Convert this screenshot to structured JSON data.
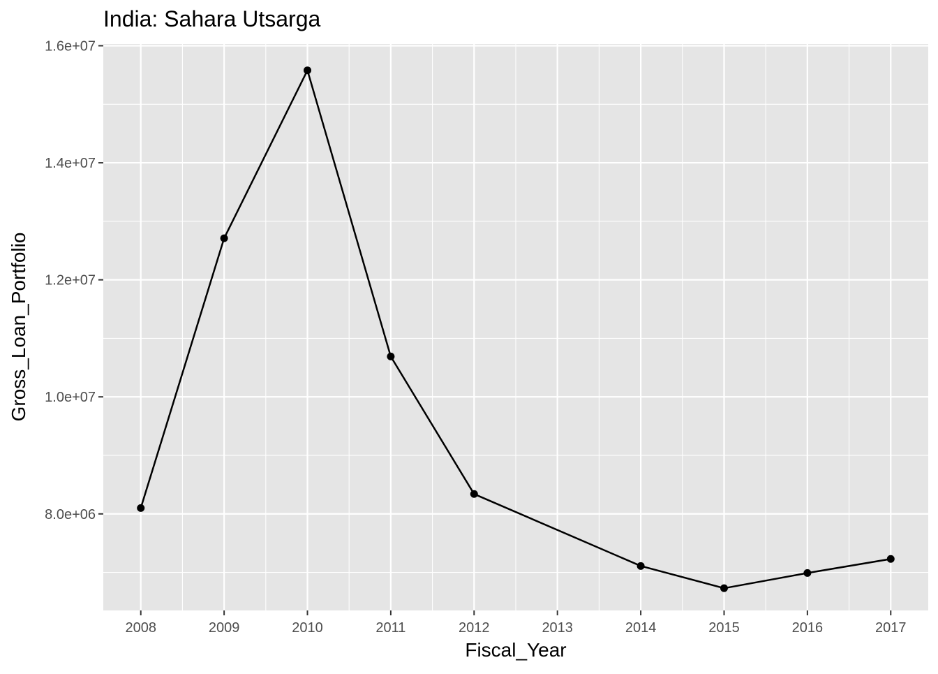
{
  "chart_data": {
    "type": "line",
    "title": "India:  Sahara Utsarga",
    "xlabel": "Fiscal_Year",
    "ylabel": "Gross_Loan_Portfolio",
    "x_ticks": [
      "2008",
      "2009",
      "2010",
      "2011",
      "2012",
      "2013",
      "2014",
      "2015",
      "2016",
      "2017"
    ],
    "xlim": [
      2007.55,
      2017.45
    ],
    "y_ticks": [
      "8.0e+06",
      "1.0e+07",
      "1.2e+07",
      "1.4e+07",
      "1.6e+07"
    ],
    "y_tick_values": [
      8000000,
      10000000,
      12000000,
      14000000,
      16000000
    ],
    "ylim": [
      6350000,
      16030000
    ],
    "grid": true,
    "legend": "none",
    "colors": {
      "panel": "#e5e5e5",
      "grid": "#ffffff",
      "line": "#000000",
      "point": "#000000",
      "tick_text": "#4d4d4d"
    },
    "series": [
      {
        "x": [
          2008,
          2009,
          2010,
          2011,
          2012,
          2014,
          2015,
          2016,
          2017
        ],
        "y": [
          8100000,
          12710000,
          15580000,
          10690000,
          8340000,
          7110000,
          6730000,
          6990000,
          7230000
        ]
      }
    ]
  }
}
